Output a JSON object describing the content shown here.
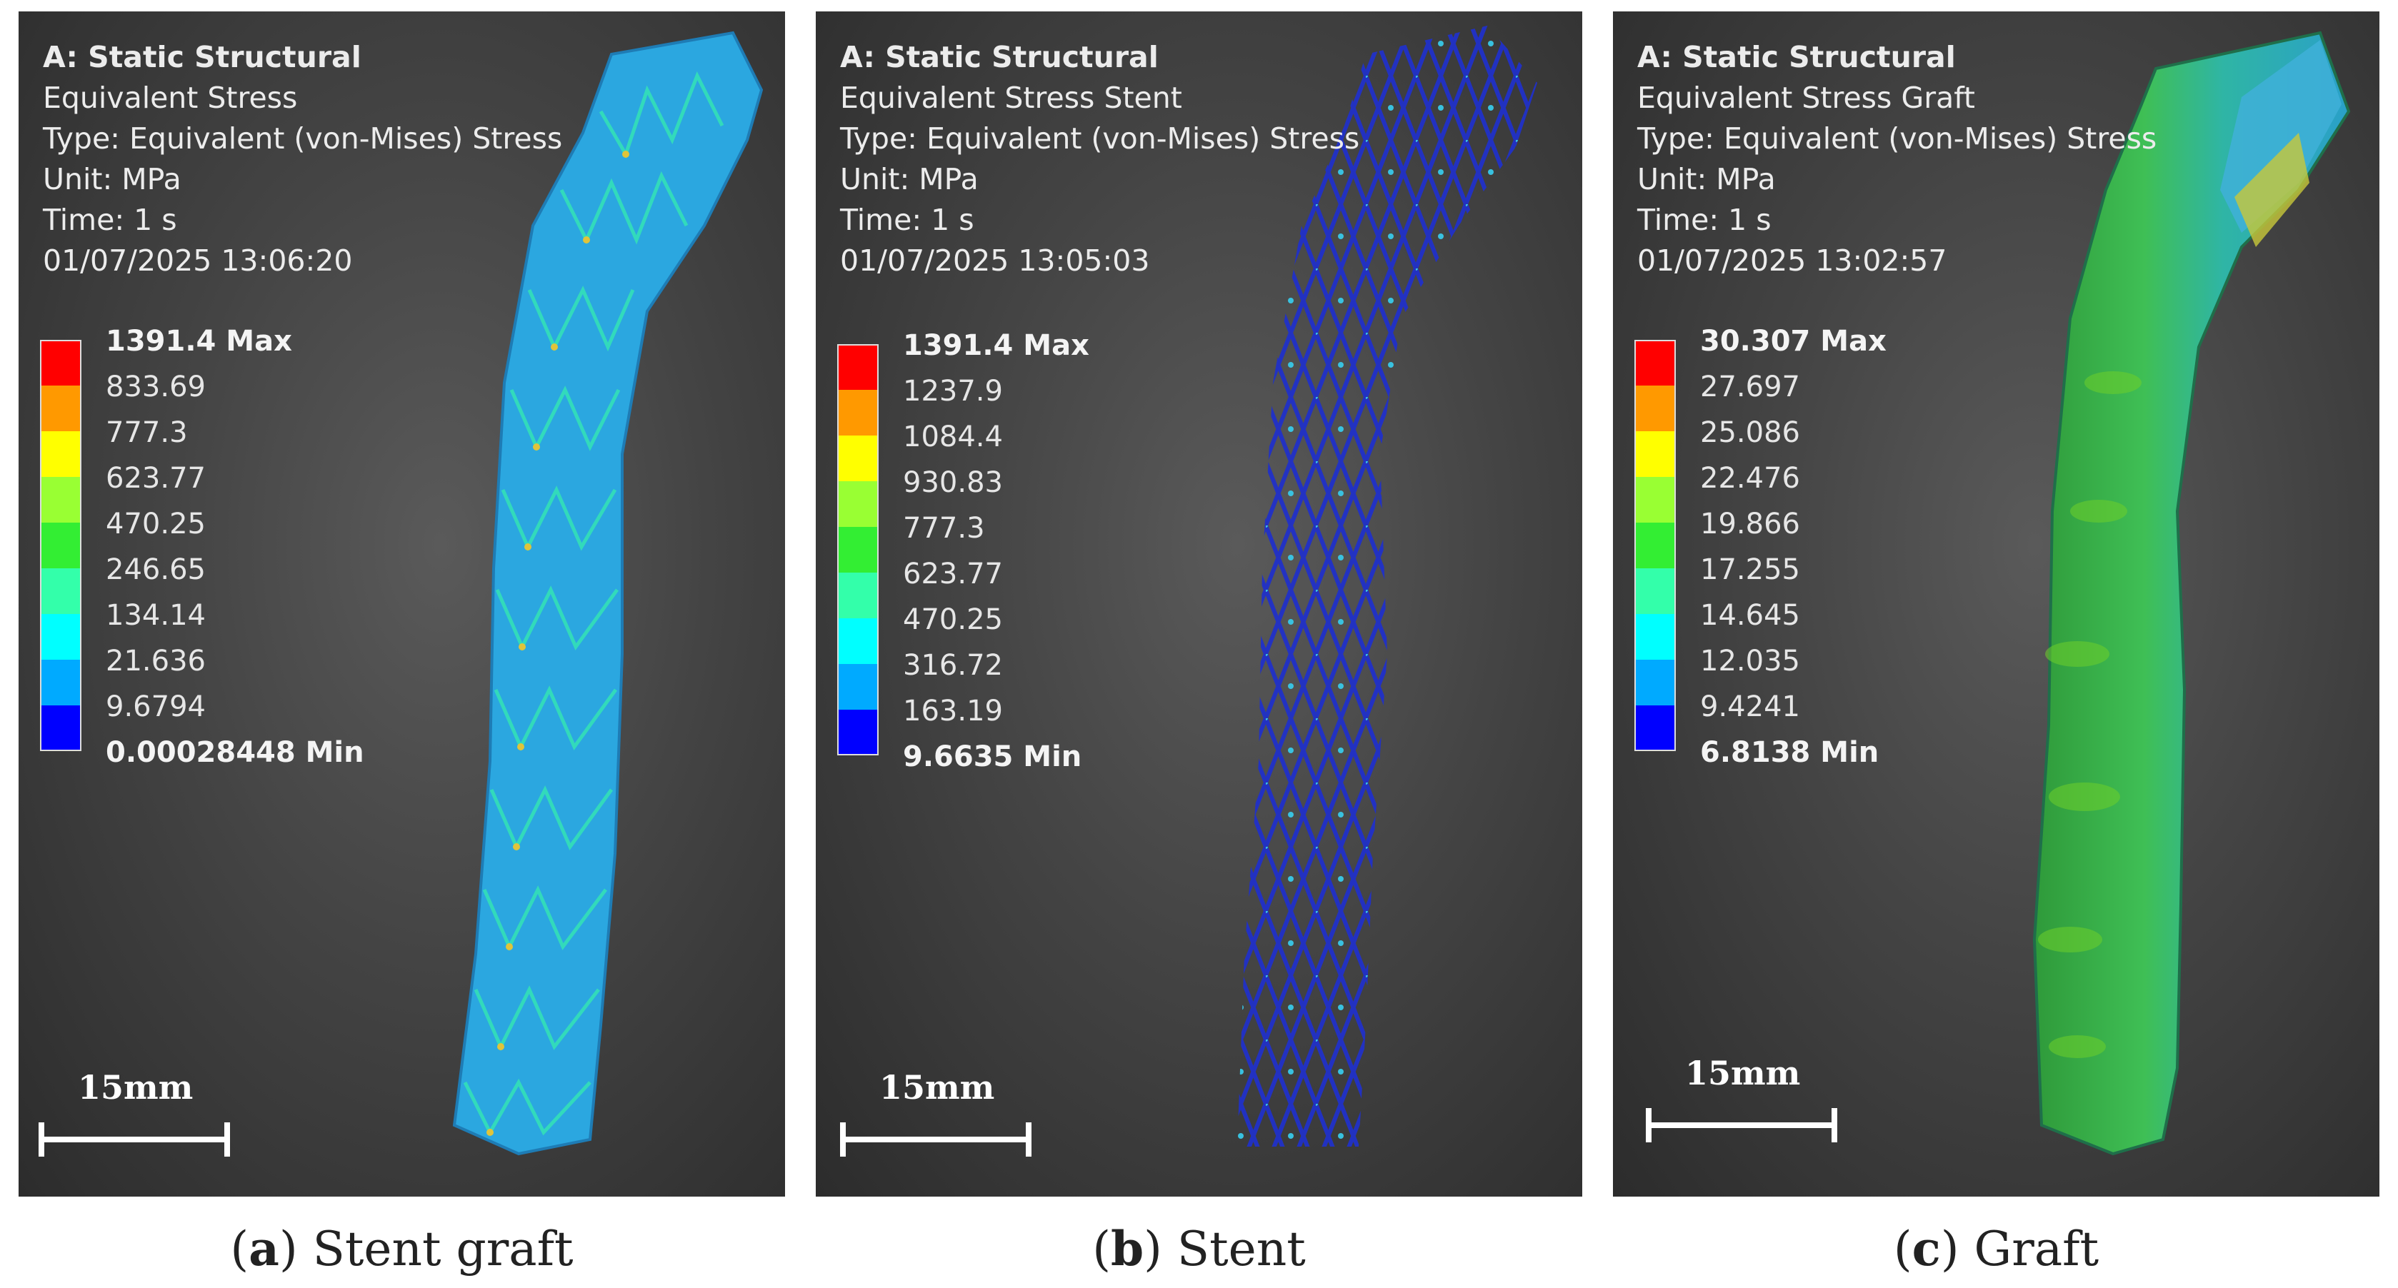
{
  "panels": [
    {
      "info": {
        "title": "A: Static Structural",
        "result": "Equivalent Stress",
        "type": "Type: Equivalent (von-Mises) Stress",
        "unit": "Unit: MPa",
        "time": "Time: 1 s",
        "timestamp": "01/07/2025 13:06:20"
      },
      "legend": [
        "1391.4 Max",
        "833.69",
        "777.3",
        "623.77",
        "470.25",
        "246.65",
        "134.14",
        "21.636",
        "9.6794",
        "0.00028448 Min"
      ],
      "scale": "15mm",
      "caption_letter": "a",
      "caption_text": " Stent graft"
    },
    {
      "info": {
        "title": "A: Static Structural",
        "result": "Equivalent Stress Stent",
        "type": "Type: Equivalent (von-Mises) Stress",
        "unit": "Unit: MPa",
        "time": "Time: 1 s",
        "timestamp": "01/07/2025 13:05:03"
      },
      "legend": [
        "1391.4 Max",
        "1237.9",
        "1084.4",
        "930.83",
        "777.3",
        "623.77",
        "470.25",
        "316.72",
        "163.19",
        "9.6635 Min"
      ],
      "scale": "15mm",
      "caption_letter": "b",
      "caption_text": " Stent"
    },
    {
      "info": {
        "title": "A: Static Structural",
        "result": "Equivalent Stress Graft",
        "type": "Type: Equivalent (von-Mises) Stress",
        "unit": "Unit: MPa",
        "time": "Time: 1 s",
        "timestamp": "01/07/2025 13:02:57"
      },
      "legend": [
        "30.307 Max",
        "27.697",
        "25.086",
        "22.476",
        "19.866",
        "17.255",
        "14.645",
        "12.035",
        "9.4241",
        "6.8138 Min"
      ],
      "scale": "15mm",
      "caption_letter": "c",
      "caption_text": " Graft"
    }
  ],
  "colors": {
    "legend_bands": [
      "#ff0000",
      "#ff9900",
      "#ffff00",
      "#99ff33",
      "#33ee33",
      "#33ffaa",
      "#00ffff",
      "#00aaff",
      "#0000ff"
    ],
    "stent_graft_body": "#2aa9e0",
    "stent_wire": "#1d2ab8",
    "graft_green": "#3aa83a"
  },
  "icons": {
    "model_a": "stent-graft-model",
    "model_b": "stent-wire-model",
    "model_c": "graft-model"
  }
}
